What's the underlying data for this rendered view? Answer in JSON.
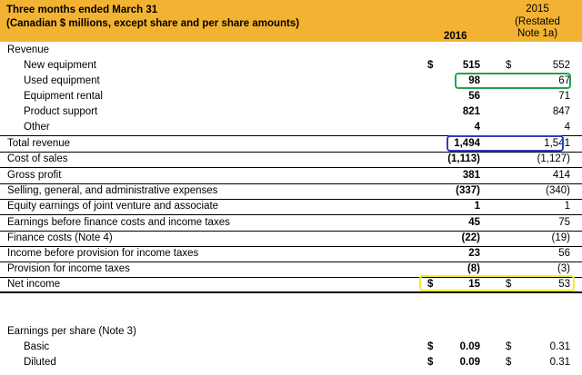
{
  "header": {
    "title_line1": "Three months ended March 31",
    "title_line2": "(Canadian $ millions, except share and per share amounts)",
    "col_2016": "2016",
    "col_2015_line1": "2015",
    "col_2015_line2": "(Restated",
    "col_2015_line3": "Note 1a)"
  },
  "rows": [
    {
      "label": "Revenue",
      "cur1": "",
      "v2016": "",
      "cur2": "",
      "v2015": ""
    },
    {
      "label": "New equipment",
      "cur1": "$",
      "v2016": "515",
      "cur2": "$",
      "v2015": "552"
    },
    {
      "label": "Used equipment",
      "cur1": "",
      "v2016": "98",
      "cur2": "",
      "v2015": "67"
    },
    {
      "label": "Equipment rental",
      "cur1": "",
      "v2016": "56",
      "cur2": "",
      "v2015": "71"
    },
    {
      "label": "Product support",
      "cur1": "",
      "v2016": "821",
      "cur2": "",
      "v2015": "847"
    },
    {
      "label": "Other",
      "cur1": "",
      "v2016": "4",
      "cur2": "",
      "v2015": "4"
    },
    {
      "label": "Total revenue",
      "cur1": "",
      "v2016": "1,494",
      "cur2": "",
      "v2015": "1,541"
    },
    {
      "label": "Cost of sales",
      "cur1": "",
      "v2016": "(1,113)",
      "cur2": "",
      "v2015": "(1,127)"
    },
    {
      "label": "Gross profit",
      "cur1": "",
      "v2016": "381",
      "cur2": "",
      "v2015": "414"
    },
    {
      "label": "Selling, general, and administrative expenses",
      "cur1": "",
      "v2016": "(337)",
      "cur2": "",
      "v2015": "(340)"
    },
    {
      "label": "Equity earnings of joint venture and associate",
      "cur1": "",
      "v2016": "1",
      "cur2": "",
      "v2015": "1"
    },
    {
      "label": "Earnings before finance costs and income taxes",
      "cur1": "",
      "v2016": "45",
      "cur2": "",
      "v2015": "75"
    },
    {
      "label": "Finance costs (Note 4)",
      "cur1": "",
      "v2016": "(22)",
      "cur2": "",
      "v2015": "(19)"
    },
    {
      "label": "Income before provision for income taxes",
      "cur1": "",
      "v2016": "23",
      "cur2": "",
      "v2015": "56"
    },
    {
      "label": "Provision for income taxes",
      "cur1": "",
      "v2016": "(8)",
      "cur2": "",
      "v2015": "(3)"
    },
    {
      "label": "Net income",
      "cur1": "$",
      "v2016": "15",
      "cur2": "$",
      "v2015": "53"
    },
    {
      "label": "Earnings per share (Note 3)",
      "cur1": "",
      "v2016": "",
      "cur2": "",
      "v2015": ""
    },
    {
      "label": "Basic",
      "cur1": "$",
      "v2016": "0.09",
      "cur2": "$",
      "v2015": "0.31"
    },
    {
      "label": "Diluted",
      "cur1": "$",
      "v2016": "0.09",
      "cur2": "$",
      "v2015": "0.31"
    }
  ],
  "highlight_colors": {
    "green": "#21a34a",
    "blue": "#2d3ec2",
    "yellow": "#f4ee33",
    "header_bg": "#f2b332"
  }
}
